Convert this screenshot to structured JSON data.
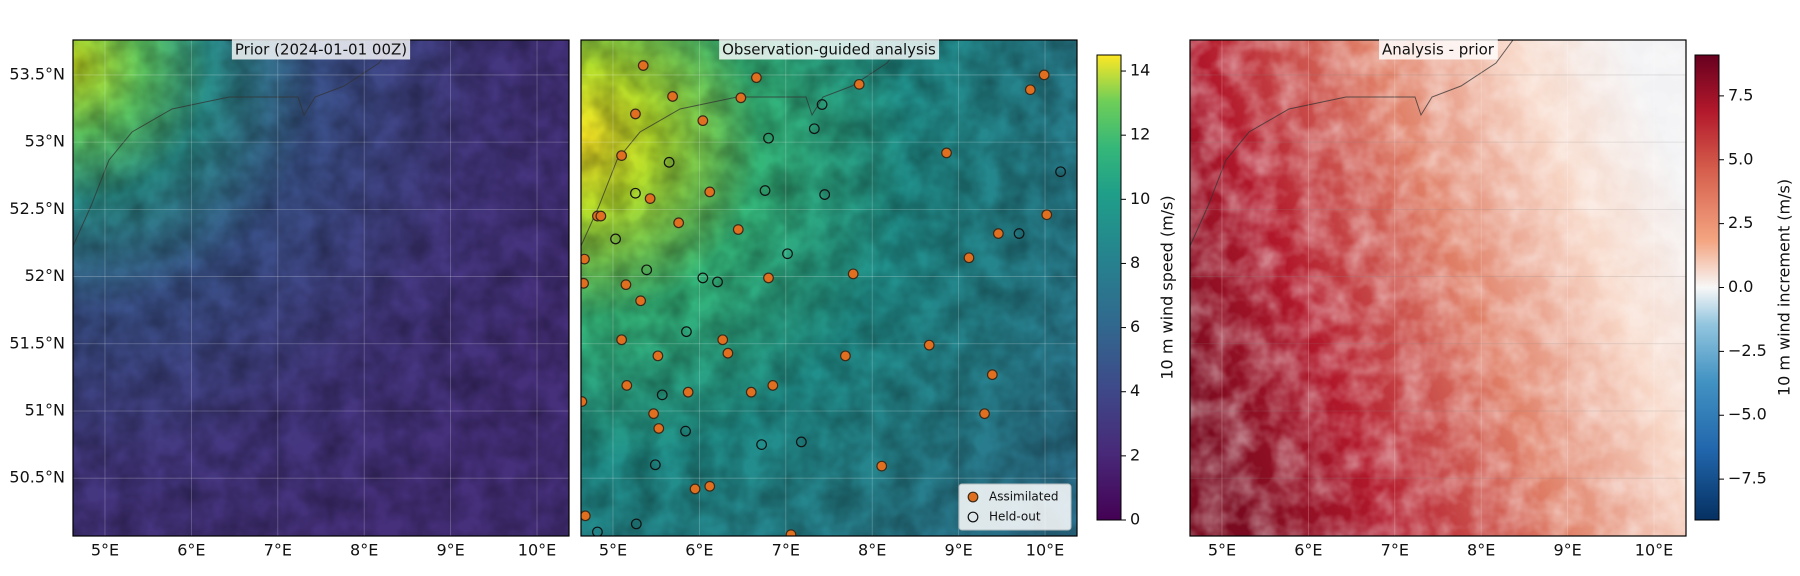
{
  "chart_data": [
    {
      "type": "map",
      "title": "Prior (2024-01-01 00Z)",
      "colormap": "viridis",
      "xlim": [
        4.63,
        10.37
      ],
      "ylim": [
        50.07,
        53.76
      ],
      "xticks": [
        {
          "value": 5,
          "label": "5°E"
        },
        {
          "value": 6,
          "label": "6°E"
        },
        {
          "value": 7,
          "label": "7°E"
        },
        {
          "value": 8,
          "label": "8°E"
        },
        {
          "value": 9,
          "label": "9°E"
        },
        {
          "value": 10,
          "label": "10°E"
        }
      ],
      "yticks": [
        {
          "value": 50.5,
          "label": "50.5°N"
        },
        {
          "value": 51,
          "label": "51°N"
        },
        {
          "value": 51.5,
          "label": "51.5°N"
        },
        {
          "value": 52,
          "label": "52°N"
        },
        {
          "value": 52.5,
          "label": "52.5°N"
        },
        {
          "value": 53,
          "label": "53°N"
        },
        {
          "value": 53.5,
          "label": "53.5°N"
        }
      ]
    },
    {
      "type": "map",
      "title": "Observation-guided analysis",
      "colormap": "viridis",
      "xlim": [
        4.63,
        10.37
      ],
      "ylim": [
        50.07,
        53.76
      ],
      "xticks": [
        {
          "value": 5,
          "label": "5°E"
        },
        {
          "value": 6,
          "label": "6°E"
        },
        {
          "value": 7,
          "label": "7°E"
        },
        {
          "value": 8,
          "label": "8°E"
        },
        {
          "value": 9,
          "label": "9°E"
        },
        {
          "value": 10,
          "label": "10°E"
        }
      ],
      "legend": "lower right",
      "series": [
        {
          "name": "Assimilated",
          "facecolor": "#e07020",
          "edgecolor": "#3a2a1a",
          "x": [
            5.35,
            6.66,
            5.69,
            6.48,
            7.85,
            9.83,
            9.99,
            5.26,
            6.04,
            5.1,
            8.86,
            6.12,
            5.43,
            5.76,
            4.82,
            4.86,
            6.45,
            10.02,
            9.46,
            9.12,
            4.67,
            4.66,
            5.15,
            7.78,
            6.8,
            5.32,
            5.1,
            6.27,
            6.33,
            5.52,
            7.69,
            8.66,
            5.16,
            6.85,
            6.6,
            5.87,
            9.39,
            4.64,
            5.47,
            9.3,
            5.53,
            8.11,
            5.95,
            6.12,
            4.68,
            7.06
          ],
          "values": [
            53.57,
            53.48,
            53.34,
            53.33,
            53.43,
            53.39,
            53.5,
            53.21,
            53.16,
            52.9,
            52.92,
            52.63,
            52.58,
            52.4,
            52.45,
            52.45,
            52.35,
            52.46,
            52.32,
            52.14,
            52.13,
            51.95,
            51.94,
            52.02,
            51.99,
            51.82,
            51.53,
            51.53,
            51.43,
            51.41,
            51.41,
            51.49,
            51.19,
            51.19,
            51.14,
            51.14,
            51.27,
            51.07,
            50.98,
            50.98,
            50.87,
            50.59,
            50.42,
            50.44,
            50.22,
            50.08
          ]
        },
        {
          "name": "Held-out",
          "facecolor": "none",
          "edgecolor": "#111111",
          "x": [
            7.42,
            6.8,
            7.33,
            5.65,
            10.18,
            5.26,
            6.76,
            7.45,
            9.7,
            5.03,
            7.02,
            5.39,
            6.04,
            6.21,
            5.85,
            5.57,
            5.84,
            6.72,
            7.18,
            5.49,
            4.82,
            5.27
          ],
          "values": [
            53.28,
            53.03,
            53.1,
            52.85,
            52.78,
            52.62,
            52.64,
            52.61,
            52.32,
            52.28,
            52.17,
            52.05,
            51.99,
            51.96,
            51.59,
            51.12,
            50.85,
            50.75,
            50.77,
            50.6,
            50.1,
            50.16
          ]
        }
      ],
      "colorbar": {
        "label": "10 m wind speed (m/s)",
        "colormap": "viridis",
        "lim": [
          0,
          14.5
        ],
        "ticks": [
          0,
          2,
          4,
          6,
          8,
          10,
          12,
          14
        ]
      }
    },
    {
      "type": "map",
      "title": "Analysis - prior",
      "colormap": "RdBu_r",
      "xlim": [
        4.63,
        10.37
      ],
      "ylim": [
        50.07,
        53.76
      ],
      "xticks": [
        {
          "value": 5,
          "label": "5°E"
        },
        {
          "value": 6,
          "label": "6°E"
        },
        {
          "value": 7,
          "label": "7°E"
        },
        {
          "value": 8,
          "label": "8°E"
        },
        {
          "value": 9,
          "label": "9°E"
        },
        {
          "value": 10,
          "label": "10°E"
        }
      ],
      "colorbar": {
        "label": "10 m wind increment (m/s)",
        "colormap": "RdBu_r",
        "lim": [
          -9.1,
          9.1
        ],
        "ticks": [
          {
            "value": -7.5,
            "label": "−7.5"
          },
          {
            "value": -5,
            "label": "−5.0"
          },
          {
            "value": -2.5,
            "label": "−2.5"
          },
          {
            "value": 0,
            "label": "0.0"
          },
          {
            "value": 2.5,
            "label": "2.5"
          },
          {
            "value": 5,
            "label": "5.0"
          },
          {
            "value": 7.5,
            "label": "7.5"
          }
        ]
      }
    }
  ]
}
